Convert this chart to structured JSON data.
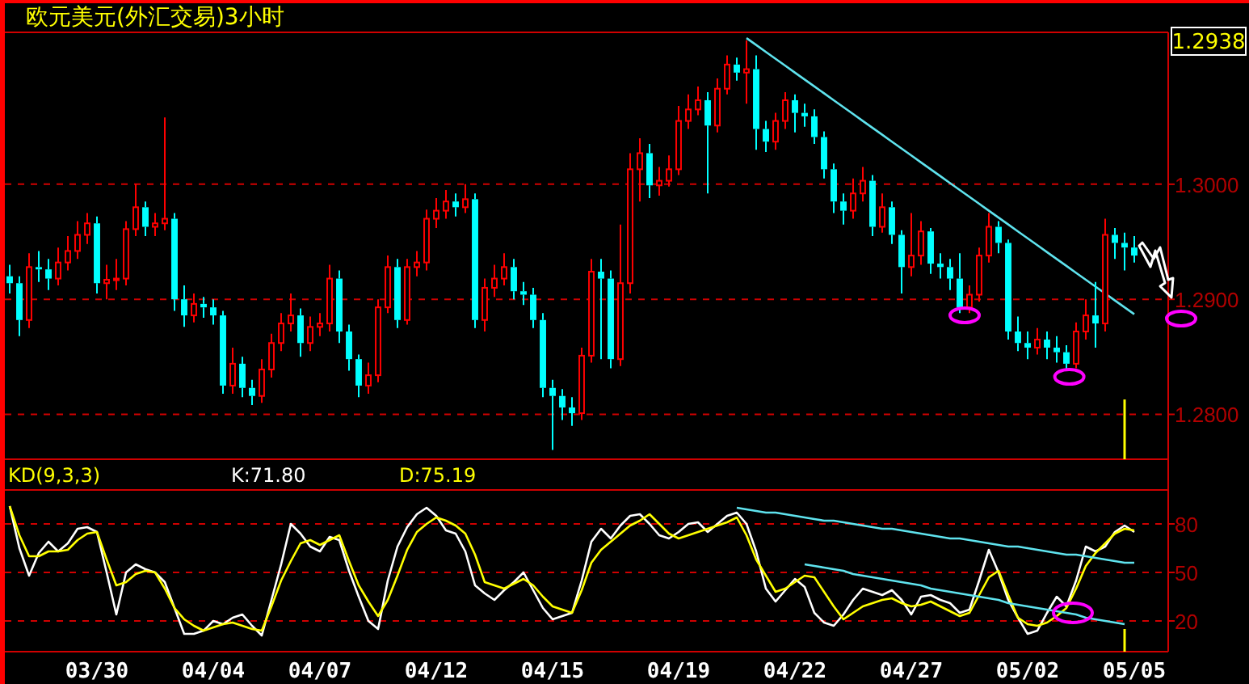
{
  "chart_data": [
    {
      "type": "candlestick",
      "title": "欧元美元(外汇交易)3小时",
      "ylim": [
        1.2761,
        1.3132
      ],
      "yticks": [
        {
          "value": 1.28,
          "label": "1.2800"
        },
        {
          "value": 1.29,
          "label": "1.2900"
        },
        {
          "value": 1.3,
          "label": "1.3000"
        }
      ],
      "grid": "y",
      "tick_labels": "y",
      "annotations": [
        "1.2938"
      ],
      "categories": [
        null,
        null,
        null,
        null,
        null,
        null,
        null,
        null,
        null,
        null,
        null,
        null,
        null,
        null,
        null,
        null,
        null,
        null,
        null,
        null,
        null,
        null,
        null,
        null,
        null,
        null,
        null,
        null,
        null,
        null,
        null,
        null,
        null,
        null,
        null,
        null,
        null,
        null,
        null,
        null,
        null,
        null,
        null,
        null,
        null,
        null,
        null,
        null,
        null,
        null,
        null,
        null,
        null,
        null,
        null,
        null,
        null,
        null,
        null,
        null,
        null,
        null,
        null,
        null,
        null,
        null,
        null,
        null,
        null,
        null,
        null,
        null,
        null,
        null,
        null,
        null,
        null,
        null,
        null,
        null,
        null,
        null,
        null,
        null,
        null,
        null,
        null,
        null,
        null,
        null,
        null,
        null,
        null,
        null,
        null,
        null,
        null,
        null,
        null,
        null,
        null,
        null,
        null,
        null,
        null,
        null,
        null,
        null,
        null,
        null,
        null,
        null,
        null,
        null,
        null,
        null,
        null,
        null,
        null,
        null
      ],
      "ohlc": [
        [
          1.292,
          1.293,
          1.2905,
          1.2914
        ],
        [
          1.2914,
          1.292,
          1.2868,
          1.2882
        ],
        [
          1.2882,
          1.294,
          1.2875,
          1.2928
        ],
        [
          1.2928,
          1.2942,
          1.2915,
          1.2926
        ],
        [
          1.2926,
          1.2935,
          1.2908,
          1.2918
        ],
        [
          1.2918,
          1.2945,
          1.2912,
          1.2932
        ],
        [
          1.2932,
          1.2955,
          1.2925,
          1.2942
        ],
        [
          1.2942,
          1.2968,
          1.2935,
          1.2956
        ],
        [
          1.2956,
          1.2975,
          1.2948,
          1.2966
        ],
        [
          1.2966,
          1.2972,
          1.2905,
          1.2914
        ],
        [
          1.2914,
          1.293,
          1.29,
          1.2917
        ],
        [
          1.2917,
          1.2935,
          1.2908,
          1.2918
        ],
        [
          1.2918,
          1.2968,
          1.2912,
          1.2961
        ],
        [
          1.2961,
          1.3,
          1.2955,
          1.298
        ],
        [
          1.298,
          1.2985,
          1.2955,
          1.2963
        ],
        [
          1.2963,
          1.2975,
          1.2955,
          1.2966
        ],
        [
          1.2966,
          1.3058,
          1.296,
          1.297
        ],
        [
          1.297,
          1.2975,
          1.289,
          1.29
        ],
        [
          1.29,
          1.2912,
          1.2876,
          1.2886
        ],
        [
          1.2886,
          1.2905,
          1.288,
          1.2896
        ],
        [
          1.2896,
          1.2902,
          1.2884,
          1.2893
        ],
        [
          1.2893,
          1.29,
          1.2878,
          1.2886
        ],
        [
          1.2886,
          1.289,
          1.2818,
          1.2825
        ],
        [
          1.2825,
          1.2858,
          1.2818,
          1.2844
        ],
        [
          1.2844,
          1.285,
          1.2815,
          1.2823
        ],
        [
          1.2823,
          1.283,
          1.2808,
          1.2816
        ],
        [
          1.2816,
          1.2848,
          1.281,
          1.2839
        ],
        [
          1.2839,
          1.287,
          1.2832,
          1.2862
        ],
        [
          1.2862,
          1.2888,
          1.2855,
          1.2879
        ],
        [
          1.2879,
          1.2905,
          1.2872,
          1.2886
        ],
        [
          1.2886,
          1.2892,
          1.285,
          1.2862
        ],
        [
          1.2862,
          1.2885,
          1.2855,
          1.2876
        ],
        [
          1.2876,
          1.2888,
          1.2868,
          1.2879
        ],
        [
          1.2879,
          1.293,
          1.2872,
          1.2918
        ],
        [
          1.2918,
          1.2925,
          1.2862,
          1.2872
        ],
        [
          1.2872,
          1.2878,
          1.2838,
          1.2848
        ],
        [
          1.2848,
          1.2852,
          1.2815,
          1.2825
        ],
        [
          1.2825,
          1.2845,
          1.2818,
          1.2834
        ],
        [
          1.2834,
          1.29,
          1.2828,
          1.2893
        ],
        [
          1.2893,
          1.2938,
          1.2888,
          1.2928
        ],
        [
          1.2928,
          1.2935,
          1.2875,
          1.2882
        ],
        [
          1.2882,
          1.2935,
          1.2878,
          1.2928
        ],
        [
          1.2928,
          1.2942,
          1.292,
          1.2932
        ],
        [
          1.2932,
          1.2978,
          1.2925,
          1.297
        ],
        [
          1.297,
          1.2988,
          1.2962,
          1.2977
        ],
        [
          1.2977,
          1.2995,
          1.297,
          1.2985
        ],
        [
          1.2985,
          1.2992,
          1.2972,
          1.298
        ],
        [
          1.298,
          1.3,
          1.2975,
          1.2987
        ],
        [
          1.2987,
          1.2992,
          1.2875,
          1.2882
        ],
        [
          1.2882,
          1.2918,
          1.2872,
          1.291
        ],
        [
          1.291,
          1.293,
          1.2902,
          1.2918
        ],
        [
          1.2918,
          1.294,
          1.2912,
          1.2928
        ],
        [
          1.2928,
          1.2935,
          1.29,
          1.2907
        ],
        [
          1.2907,
          1.2915,
          1.2895,
          1.2904
        ],
        [
          1.2904,
          1.291,
          1.2875,
          1.2882
        ],
        [
          1.2882,
          1.2888,
          1.2815,
          1.2823
        ],
        [
          1.2823,
          1.283,
          1.2769,
          1.2816
        ],
        [
          1.2816,
          1.2822,
          1.2795,
          1.2806
        ],
        [
          1.2806,
          1.2815,
          1.279,
          1.2801
        ],
        [
          1.2801,
          1.2858,
          1.2795,
          1.2851
        ],
        [
          1.2851,
          1.2935,
          1.2845,
          1.2924
        ],
        [
          1.2924,
          1.2935,
          1.2848,
          1.2918
        ],
        [
          1.2918,
          1.2925,
          1.284,
          1.2848
        ],
        [
          1.2848,
          1.2965,
          1.2842,
          1.2914
        ],
        [
          1.2914,
          1.3027,
          1.2905,
          1.3013
        ],
        [
          1.3013,
          1.304,
          1.2985,
          1.3027
        ],
        [
          1.3027,
          1.3035,
          1.2988,
          1.2999
        ],
        [
          1.2999,
          1.3015,
          1.299,
          1.3003
        ],
        [
          1.3003,
          1.3025,
          1.2998,
          1.3013
        ],
        [
          1.3013,
          1.3068,
          1.3008,
          1.3055
        ],
        [
          1.3055,
          1.3078,
          1.3048,
          1.3065
        ],
        [
          1.3065,
          1.3085,
          1.306,
          1.3073
        ],
        [
          1.3073,
          1.308,
          1.2992,
          1.3051
        ],
        [
          1.3051,
          1.3092,
          1.3045,
          1.3083
        ],
        [
          1.3083,
          1.3112,
          1.3078,
          1.3104
        ],
        [
          1.3104,
          1.311,
          1.309,
          1.3097
        ],
        [
          1.3097,
          1.3125,
          1.307,
          1.31
        ],
        [
          1.31,
          1.3112,
          1.303,
          1.3048
        ],
        [
          1.3048,
          1.3055,
          1.3028,
          1.3037
        ],
        [
          1.3037,
          1.3062,
          1.303,
          1.3055
        ],
        [
          1.3055,
          1.308,
          1.3048,
          1.3073
        ],
        [
          1.3073,
          1.3078,
          1.3045,
          1.3062
        ],
        [
          1.3062,
          1.307,
          1.305,
          1.3059
        ],
        [
          1.3059,
          1.3065,
          1.3035,
          1.3041
        ],
        [
          1.3041,
          1.3046,
          1.3005,
          1.3013
        ],
        [
          1.3013,
          1.3018,
          1.2975,
          1.2985
        ],
        [
          1.2985,
          1.2992,
          1.2965,
          1.2977
        ],
        [
          1.2977,
          1.3005,
          1.297,
          1.2992
        ],
        [
          1.2992,
          1.3015,
          1.2985,
          1.3003
        ],
        [
          1.3003,
          1.3008,
          1.2955,
          1.2963
        ],
        [
          1.2963,
          1.2992,
          1.2958,
          1.298
        ],
        [
          1.298,
          1.2985,
          1.2948,
          1.2956
        ],
        [
          1.2956,
          1.296,
          1.2905,
          1.2928
        ],
        [
          1.2928,
          1.2975,
          1.292,
          1.2938
        ],
        [
          1.2938,
          1.2968,
          1.293,
          1.2959
        ],
        [
          1.2959,
          1.2962,
          1.2922,
          1.2931
        ],
        [
          1.2931,
          1.294,
          1.2918,
          1.2928
        ],
        [
          1.2928,
          1.2935,
          1.2908,
          1.2918
        ],
        [
          1.2918,
          1.294,
          1.2888,
          1.2893
        ],
        [
          1.2893,
          1.2912,
          1.2888,
          1.2904
        ],
        [
          1.2904,
          1.2945,
          1.2898,
          1.2938
        ],
        [
          1.2938,
          1.2975,
          1.2932,
          1.2963
        ],
        [
          1.2963,
          1.2968,
          1.294,
          1.2949
        ],
        [
          1.2949,
          1.2952,
          1.2865,
          1.2872
        ],
        [
          1.2872,
          1.2885,
          1.2855,
          1.2862
        ],
        [
          1.2862,
          1.2872,
          1.2848,
          1.2858
        ],
        [
          1.2858,
          1.2875,
          1.2852,
          1.2865
        ],
        [
          1.2865,
          1.2872,
          1.2848,
          1.2858
        ],
        [
          1.2858,
          1.2868,
          1.2845,
          1.2854
        ],
        [
          1.2854,
          1.286,
          1.2838,
          1.2844
        ],
        [
          1.2844,
          1.288,
          1.284,
          1.2872
        ],
        [
          1.2872,
          1.29,
          1.2865,
          1.2886
        ],
        [
          1.2886,
          1.2915,
          1.2858,
          1.2879
        ],
        [
          1.2879,
          1.297,
          1.2872,
          1.2956
        ],
        [
          1.2956,
          1.2962,
          1.2935,
          1.2949
        ],
        [
          1.2949,
          1.2958,
          1.2925,
          1.2945
        ],
        [
          1.2945,
          1.2955,
          1.2932,
          1.2938
        ],
        null,
        null,
        null
      ],
      "series": [
        {
          "type": "line",
          "color": "#5fe3ee",
          "values": [
            null,
            null,
            null,
            null,
            null,
            null,
            null,
            null,
            null,
            null,
            null,
            null,
            null,
            null,
            null,
            null,
            null,
            null,
            null,
            null,
            null,
            null,
            null,
            null,
            null,
            null,
            null,
            null,
            null,
            null,
            null,
            null,
            null,
            null,
            null,
            null,
            null,
            null,
            null,
            null,
            null,
            null,
            null,
            null,
            null,
            null,
            null,
            null,
            null,
            null,
            null,
            null,
            null,
            null,
            null,
            null,
            null,
            null,
            null,
            null,
            null,
            null,
            null,
            null,
            null,
            null,
            null,
            null,
            null,
            null,
            null,
            null,
            null,
            null,
            null,
            null,
            1.3127,
            1.3121,
            1.3115,
            1.3109,
            1.3103,
            1.3097,
            1.3091,
            1.3085,
            1.3079,
            1.3073,
            1.3067,
            1.3061,
            1.3055,
            1.3049,
            1.3043,
            1.3037,
            1.3031,
            1.3025,
            1.3019,
            1.3013,
            1.3007,
            1.3001,
            1.2995,
            1.2989,
            1.2983,
            1.2977,
            1.2971,
            1.2965,
            1.2959,
            1.2953,
            1.2947,
            1.2941,
            1.2935,
            1.2929,
            1.2923,
            1.2917,
            1.2911,
            1.2905,
            1.2899,
            1.2893,
            1.2887,
            null,
            null,
            null
          ]
        }
      ]
    },
    {
      "type": "line",
      "title": "KD(9,3,3)",
      "ylim": [
        1,
        101
      ],
      "yticks": [
        20,
        50,
        80
      ],
      "grid": "y",
      "legend": "top",
      "categories": [
        null,
        null,
        null,
        null,
        null,
        null,
        null,
        null,
        null,
        "03/30",
        null,
        null,
        null,
        null,
        null,
        null,
        null,
        null,
        null,
        null,
        null,
        "04/04",
        null,
        null,
        null,
        null,
        null,
        null,
        null,
        null,
        null,
        null,
        "04/07",
        null,
        null,
        null,
        null,
        null,
        null,
        null,
        null,
        null,
        null,
        null,
        "04/12",
        null,
        null,
        null,
        null,
        null,
        null,
        null,
        null,
        null,
        null,
        null,
        "04/15",
        null,
        null,
        null,
        null,
        null,
        null,
        null,
        null,
        null,
        null,
        null,
        null,
        "04/19",
        null,
        null,
        null,
        null,
        null,
        null,
        null,
        null,
        null,
        null,
        null,
        "04/22",
        null,
        null,
        null,
        null,
        null,
        null,
        null,
        null,
        null,
        null,
        null,
        "04/27",
        null,
        null,
        null,
        null,
        null,
        null,
        null,
        null,
        null,
        null,
        null,
        "05/02",
        null,
        null,
        null,
        null,
        null,
        null,
        null,
        null,
        null,
        null,
        "05/05",
        null,
        null,
        null
      ],
      "series": [
        {
          "name": "K:71.80",
          "color": "#ffffff",
          "values": [
            91,
            65,
            48,
            62,
            69,
            63,
            68,
            77,
            78,
            75,
            50,
            24,
            50,
            55,
            52,
            50,
            44,
            28,
            12,
            12,
            14,
            20,
            18,
            22,
            24,
            17,
            11,
            33,
            55,
            80,
            74,
            66,
            63,
            72,
            70,
            51,
            35,
            20,
            15,
            45,
            66,
            78,
            86,
            90,
            85,
            76,
            74,
            63,
            42,
            37,
            33,
            39,
            44,
            50,
            39,
            28,
            21,
            23,
            25,
            45,
            69,
            77,
            71,
            79,
            85,
            86,
            80,
            73,
            71,
            75,
            80,
            81,
            75,
            80,
            85,
            87,
            80,
            63,
            40,
            32,
            39,
            46,
            41,
            25,
            19,
            17,
            24,
            33,
            40,
            38,
            36,
            39,
            33,
            24,
            35,
            36,
            33,
            31,
            25,
            27,
            45,
            64,
            50,
            33,
            22,
            12,
            14,
            25,
            35,
            29,
            45,
            66,
            63,
            66,
            75,
            79,
            75,
            null,
            null,
            null
          ]
        },
        {
          "name": "D:75.19",
          "color": "#ffff00",
          "values": [
            91,
            73,
            60,
            60,
            63,
            63,
            64,
            70,
            74,
            75,
            58,
            42,
            44,
            49,
            51,
            50,
            40,
            28,
            21,
            17,
            14,
            16,
            18,
            19,
            17,
            15,
            14,
            29,
            45,
            57,
            68,
            70,
            67,
            70,
            73,
            57,
            42,
            32,
            23,
            33,
            48,
            64,
            75,
            80,
            84,
            82,
            79,
            74,
            61,
            44,
            42,
            40,
            43,
            46,
            42,
            35,
            29,
            27,
            25,
            39,
            56,
            64,
            69,
            74,
            79,
            82,
            86,
            80,
            74,
            71,
            73,
            75,
            77,
            79,
            81,
            84,
            73,
            58,
            48,
            38,
            40,
            44,
            48,
            47,
            38,
            29,
            21,
            25,
            29,
            31,
            33,
            34,
            31,
            29,
            30,
            32,
            29,
            26,
            23,
            25,
            36,
            47,
            51,
            36,
            22,
            18,
            17,
            19,
            23,
            28,
            40,
            54,
            62,
            68,
            74,
            77,
            76,
            null,
            null,
            null
          ]
        },
        {
          "color": "#5fe3ee",
          "values": [
            null,
            null,
            null,
            null,
            null,
            null,
            null,
            null,
            null,
            null,
            null,
            null,
            null,
            null,
            null,
            null,
            null,
            null,
            null,
            null,
            null,
            null,
            null,
            null,
            null,
            null,
            null,
            null,
            null,
            null,
            null,
            null,
            null,
            null,
            null,
            null,
            null,
            null,
            null,
            null,
            null,
            null,
            null,
            null,
            null,
            null,
            null,
            null,
            null,
            null,
            null,
            null,
            null,
            null,
            null,
            null,
            null,
            null,
            null,
            null,
            null,
            null,
            null,
            null,
            null,
            null,
            null,
            null,
            null,
            null,
            null,
            null,
            null,
            null,
            null,
            90,
            89,
            88,
            87,
            87,
            86,
            85,
            84,
            83,
            82,
            82,
            81,
            80,
            79,
            78,
            77,
            77,
            76,
            75,
            74,
            73,
            72,
            71,
            71,
            70,
            69,
            68,
            67,
            66,
            66,
            65,
            64,
            63,
            62,
            61,
            61,
            60,
            59,
            58,
            57,
            56,
            56,
            null,
            null,
            null
          ]
        },
        {
          "color": "#5fe3ee",
          "values": [
            null,
            null,
            null,
            null,
            null,
            null,
            null,
            null,
            null,
            null,
            null,
            null,
            null,
            null,
            null,
            null,
            null,
            null,
            null,
            null,
            null,
            null,
            null,
            null,
            null,
            null,
            null,
            null,
            null,
            null,
            null,
            null,
            null,
            null,
            null,
            null,
            null,
            null,
            null,
            null,
            null,
            null,
            null,
            null,
            null,
            null,
            null,
            null,
            null,
            null,
            null,
            null,
            null,
            null,
            null,
            null,
            null,
            null,
            null,
            null,
            null,
            null,
            null,
            null,
            null,
            null,
            null,
            null,
            null,
            null,
            null,
            null,
            null,
            null,
            null,
            null,
            null,
            null,
            null,
            null,
            null,
            null,
            55,
            54,
            53,
            52,
            51,
            49,
            48,
            47,
            46,
            45,
            44,
            43,
            42,
            40,
            39,
            38,
            37,
            36,
            35,
            34,
            33,
            31,
            30,
            29,
            28,
            27,
            26,
            25,
            24,
            22,
            21,
            20,
            19,
            18,
            null,
            null,
            null,
            null
          ]
        }
      ]
    }
  ]
}
